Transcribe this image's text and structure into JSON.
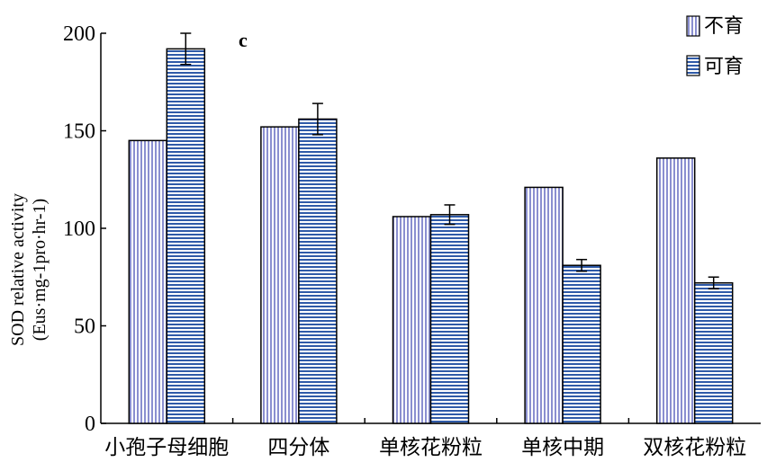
{
  "chart_data": {
    "type": "bar",
    "panel_label": "c",
    "ylabel_line1": "SOD relative activity",
    "ylabel_line2": "(Eus·mg-1pro·hr-1)",
    "xlabel": "",
    "ylim": [
      0,
      200
    ],
    "yticks": [
      0,
      50,
      100,
      150,
      200
    ],
    "categories": [
      "小孢子母细胞",
      "四分体",
      "单核花粉粒",
      "单核中期",
      "双核花粉粒"
    ],
    "series": [
      {
        "name": "不育",
        "pattern": "vertical-stripes",
        "color": "#8a8fd0",
        "values": [
          145,
          152,
          106,
          121,
          136
        ],
        "errors": [
          null,
          null,
          null,
          null,
          null
        ]
      },
      {
        "name": "可育",
        "pattern": "horizontal-stripes",
        "color": "#2f5aa8",
        "values": [
          192,
          156,
          107,
          81,
          72
        ],
        "errors": [
          8,
          8,
          5,
          3,
          3
        ]
      }
    ],
    "legend_position": "top-right",
    "grid": false
  }
}
